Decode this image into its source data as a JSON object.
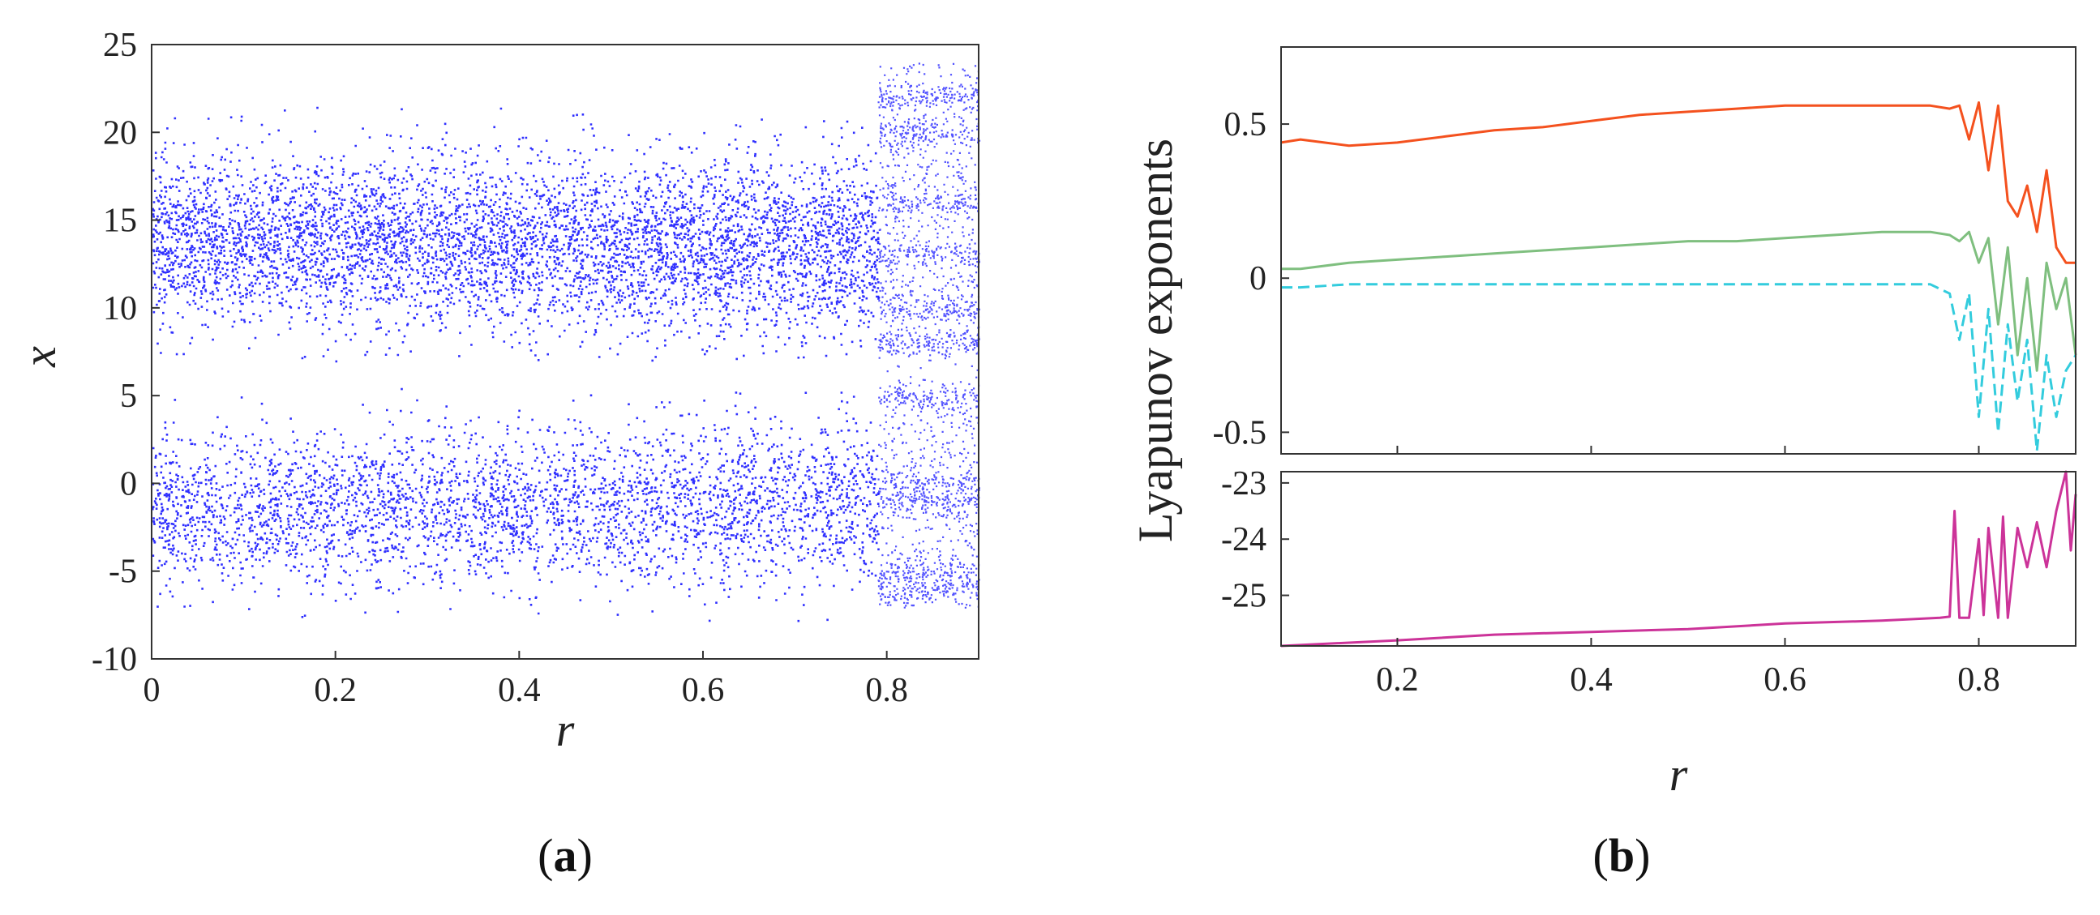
{
  "chart_data": [
    {
      "type": "scatter",
      "panel_label": "a",
      "xlabel": "r",
      "ylabel": "x",
      "xlim": [
        0,
        0.9
      ],
      "ylim": [
        -10,
        25
      ],
      "xticks": [
        0,
        0.2,
        0.4,
        0.6,
        0.8
      ],
      "xtick_labels": [
        "0",
        "0.2",
        "0.4",
        "0.6",
        "0.8"
      ],
      "yticks": [
        -10,
        -5,
        0,
        5,
        10,
        15,
        20,
        25
      ],
      "ytick_labels": [
        "-10",
        "-5",
        "0",
        "5",
        "10",
        "15",
        "20",
        "25"
      ],
      "color": "#1a1aff",
      "bands": [
        {
          "name": "upper",
          "x_range": [
            0,
            0.79
          ],
          "center_start": 14.0,
          "center_end": 13.5,
          "spread_start": 6.0,
          "spread_end": 6.5,
          "min": 7,
          "max": 21.5
        },
        {
          "name": "lower",
          "x_range": [
            0,
            0.79
          ],
          "center_start": -1.5,
          "center_end": -1.0,
          "spread_start": 5.5,
          "spread_end": 6.0,
          "min": -8,
          "max": 5.5
        }
      ],
      "periodic_region": {
        "x_range": [
          0.79,
          0.9
        ],
        "note_values": [
          -6,
          -5,
          -1,
          0,
          5,
          8,
          10,
          13,
          16,
          20,
          22
        ]
      },
      "grid": false
    },
    {
      "type": "line",
      "panel_label": "b",
      "ylabel": "Lyapunov exponents",
      "xlabel": "r",
      "subplots": [
        {
          "name": "upper",
          "xlim": [
            0.08,
            0.9
          ],
          "ylim": [
            -0.57,
            0.75
          ],
          "yticks": [
            -0.5,
            0,
            0.5
          ],
          "ytick_labels": [
            "-0.5",
            "0",
            "0.5"
          ],
          "series": [
            {
              "color": "#f4511e",
              "style": "solid",
              "x": [
                0.08,
                0.1,
                0.15,
                0.2,
                0.25,
                0.3,
                0.35,
                0.4,
                0.45,
                0.5,
                0.55,
                0.6,
                0.65,
                0.7,
                0.75,
                0.77,
                0.78,
                0.79,
                0.8,
                0.81,
                0.82,
                0.83,
                0.84,
                0.85,
                0.86,
                0.87,
                0.88,
                0.89,
                0.9
              ],
              "y": [
                0.44,
                0.45,
                0.43,
                0.44,
                0.46,
                0.48,
                0.49,
                0.51,
                0.53,
                0.54,
                0.55,
                0.56,
                0.56,
                0.56,
                0.56,
                0.55,
                0.56,
                0.45,
                0.57,
                0.35,
                0.56,
                0.25,
                0.2,
                0.3,
                0.15,
                0.35,
                0.1,
                0.05,
                0.05
              ]
            },
            {
              "color": "#7fbf7f",
              "style": "solid",
              "x": [
                0.08,
                0.1,
                0.15,
                0.2,
                0.25,
                0.3,
                0.35,
                0.4,
                0.45,
                0.5,
                0.55,
                0.6,
                0.65,
                0.7,
                0.75,
                0.77,
                0.78,
                0.79,
                0.8,
                0.81,
                0.82,
                0.83,
                0.84,
                0.85,
                0.86,
                0.87,
                0.88,
                0.89,
                0.9
              ],
              "y": [
                0.03,
                0.03,
                0.05,
                0.06,
                0.07,
                0.08,
                0.09,
                0.1,
                0.11,
                0.12,
                0.12,
                0.13,
                0.14,
                0.15,
                0.15,
                0.14,
                0.12,
                0.15,
                0.05,
                0.13,
                -0.15,
                0.1,
                -0.25,
                0.0,
                -0.3,
                0.05,
                -0.1,
                0.0,
                -0.25
              ]
            },
            {
              "color": "#33ccdd",
              "style": "dashed",
              "x": [
                0.08,
                0.1,
                0.15,
                0.2,
                0.25,
                0.3,
                0.35,
                0.4,
                0.45,
                0.5,
                0.55,
                0.6,
                0.65,
                0.7,
                0.75,
                0.77,
                0.78,
                0.79,
                0.8,
                0.81,
                0.82,
                0.83,
                0.84,
                0.85,
                0.86,
                0.87,
                0.88,
                0.89,
                0.9
              ],
              "y": [
                -0.03,
                -0.03,
                -0.02,
                -0.02,
                -0.02,
                -0.02,
                -0.02,
                -0.02,
                -0.02,
                -0.02,
                -0.02,
                -0.02,
                -0.02,
                -0.02,
                -0.02,
                -0.05,
                -0.2,
                -0.05,
                -0.45,
                -0.1,
                -0.5,
                -0.15,
                -0.4,
                -0.2,
                -0.56,
                -0.25,
                -0.45,
                -0.3,
                -0.25
              ]
            }
          ]
        },
        {
          "name": "lower",
          "xlim": [
            0.08,
            0.9
          ],
          "ylim": [
            -25.9,
            -22.8
          ],
          "yticks": [
            -25,
            -24,
            -23
          ],
          "ytick_labels": [
            "-25",
            "-24",
            "-23"
          ],
          "xticks": [
            0.2,
            0.4,
            0.6,
            0.8
          ],
          "xtick_labels": [
            "0.2",
            "0.4",
            "0.6",
            "0.8"
          ],
          "series": [
            {
              "color": "#cc3399",
              "style": "solid",
              "x": [
                0.08,
                0.2,
                0.3,
                0.4,
                0.5,
                0.6,
                0.7,
                0.76,
                0.77,
                0.775,
                0.78,
                0.79,
                0.8,
                0.805,
                0.81,
                0.82,
                0.825,
                0.83,
                0.84,
                0.85,
                0.86,
                0.87,
                0.88,
                0.89,
                0.895,
                0.9
              ],
              "y": [
                -25.9,
                -25.8,
                -25.7,
                -25.65,
                -25.6,
                -25.5,
                -25.45,
                -25.4,
                -25.38,
                -23.5,
                -25.4,
                -25.4,
                -24.0,
                -25.35,
                -23.8,
                -25.4,
                -23.6,
                -25.4,
                -23.8,
                -24.5,
                -23.7,
                -24.5,
                -23.5,
                -22.8,
                -24.2,
                -23.2
              ]
            }
          ]
        }
      ]
    }
  ]
}
